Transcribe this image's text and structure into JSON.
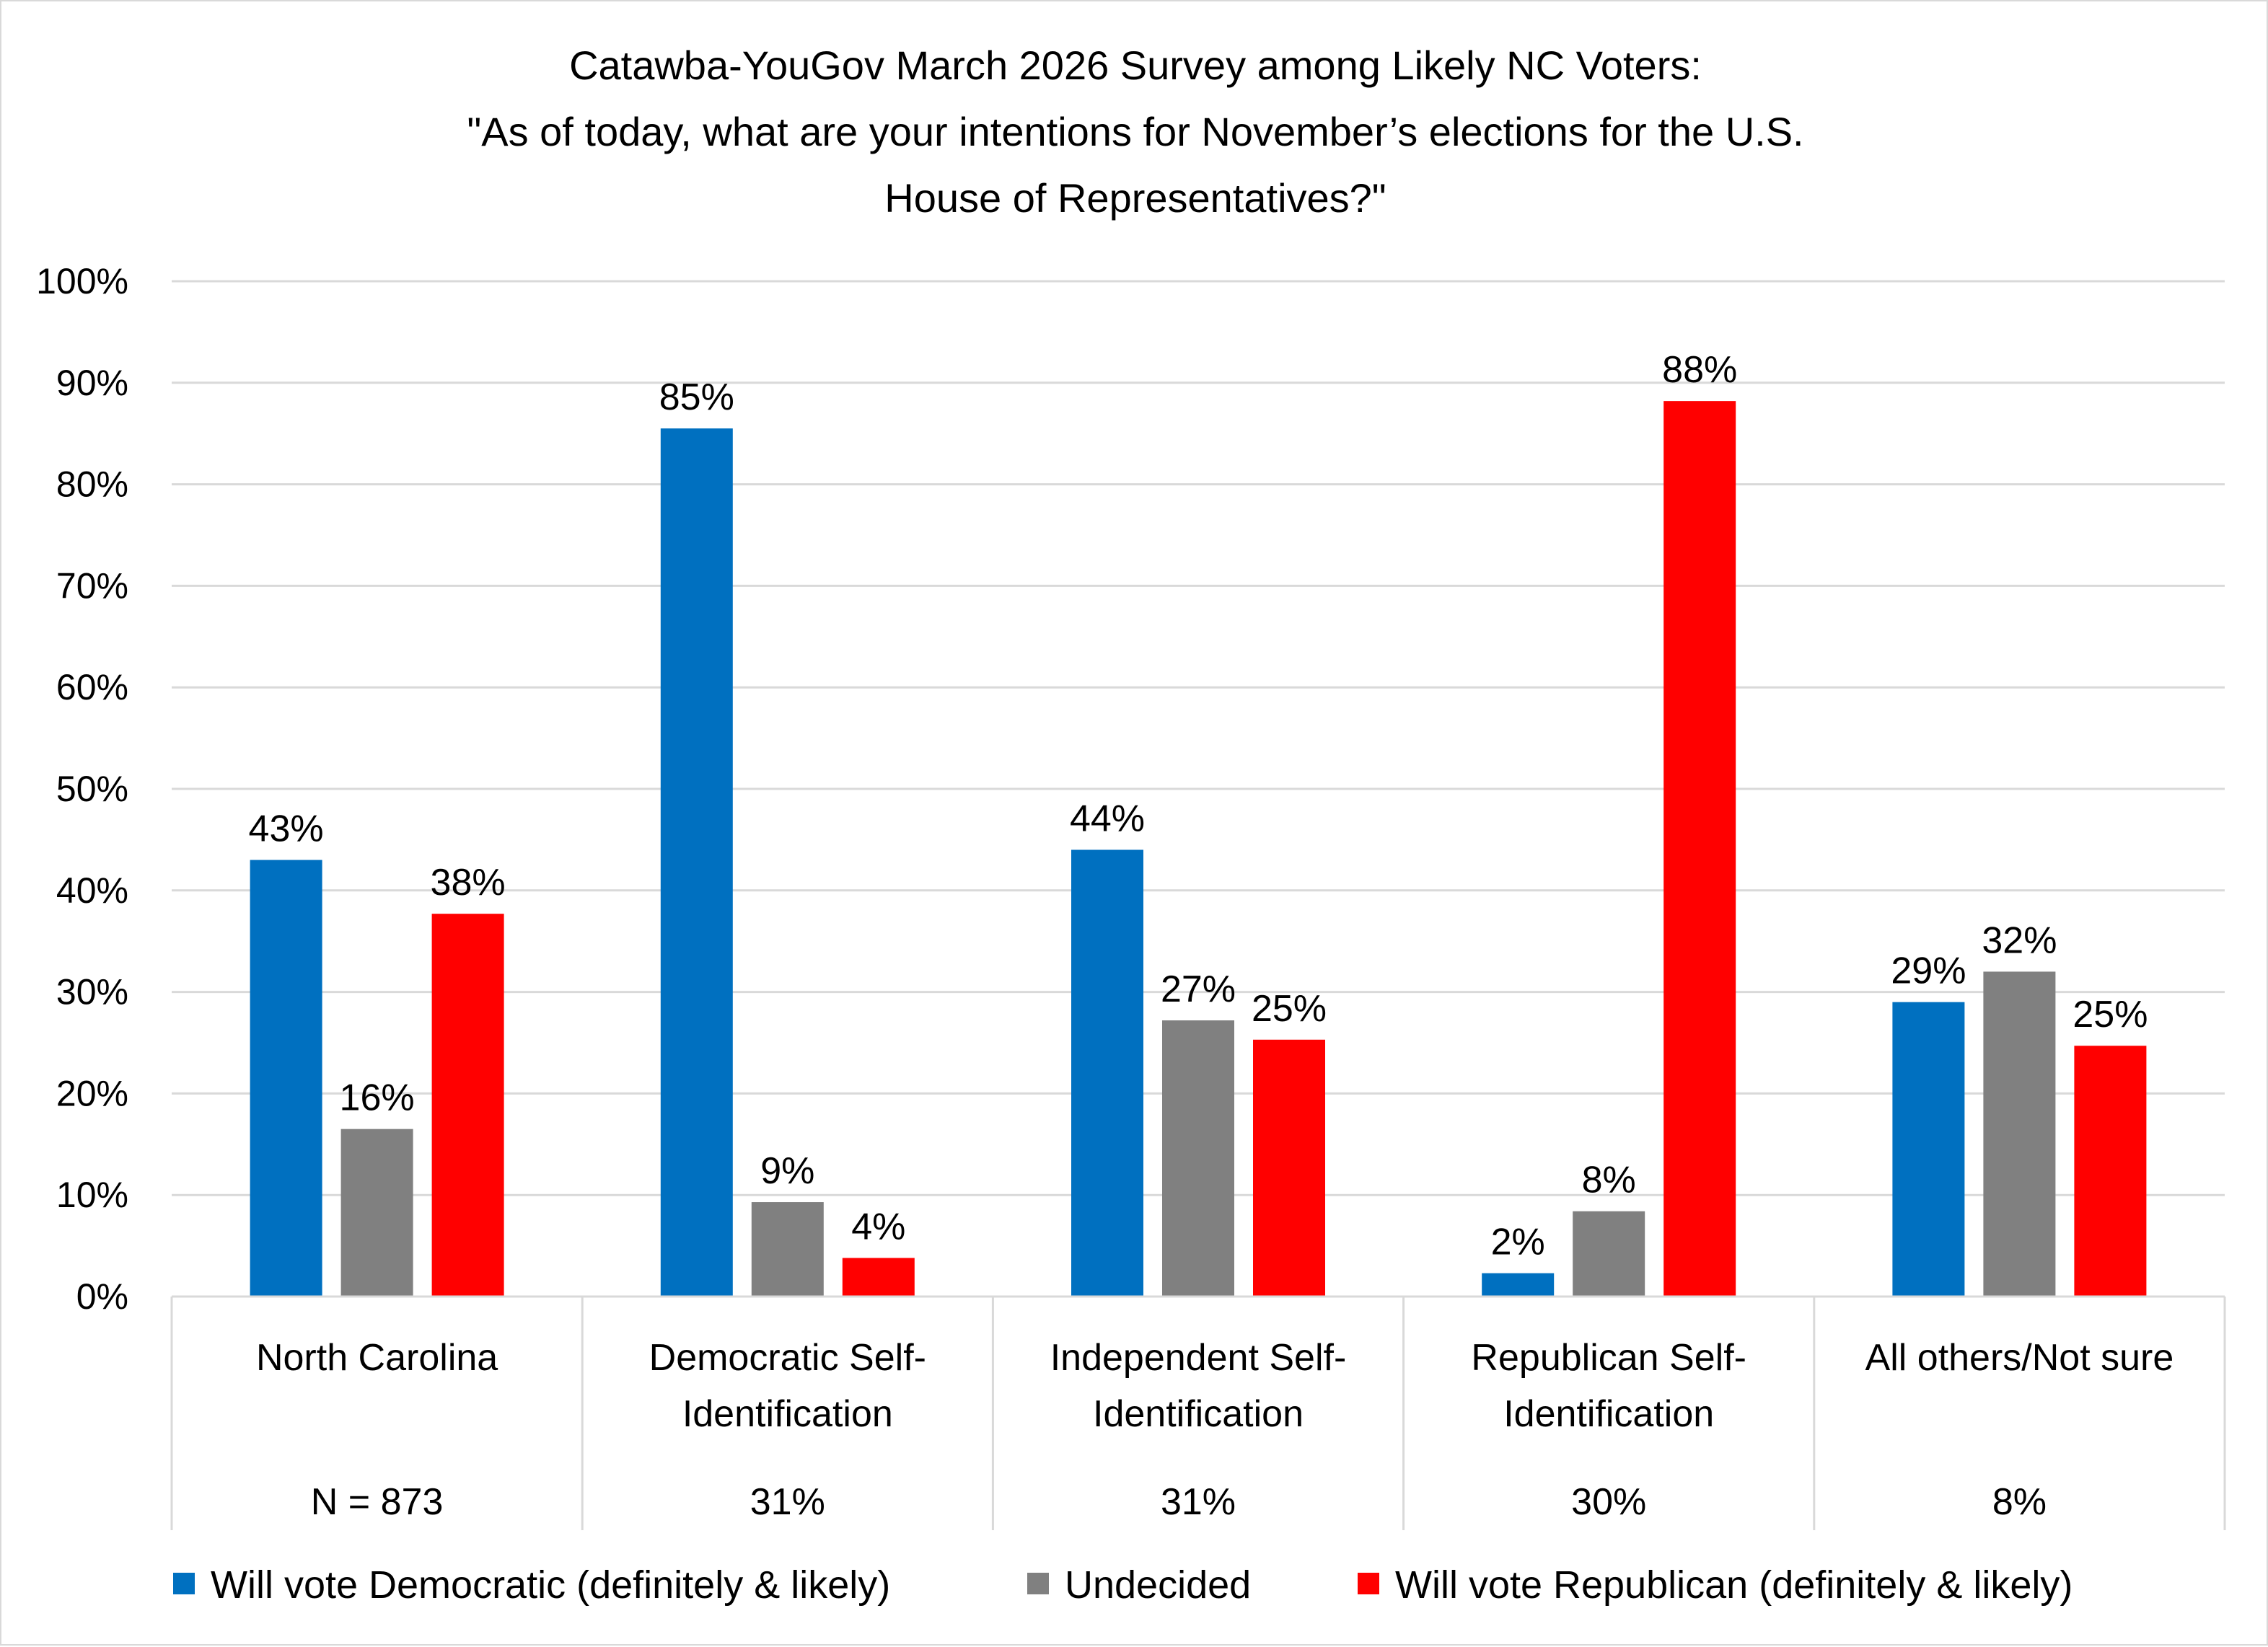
{
  "chart_data": {
    "type": "bar",
    "title": [
      "Catawba-YouGov March 2026 Survey among Likely NC Voters:",
      "\"As of today, what are your intentions for November’s elections for the U.S.",
      "House of Representatives?\""
    ],
    "categories": [
      [
        "North Carolina"
      ],
      [
        "Democratic Self-",
        "Identification"
      ],
      [
        "Independent Self-",
        "Identification"
      ],
      [
        "Republican Self-",
        "Identification"
      ],
      [
        "All others/Not sure"
      ]
    ],
    "category_sublabels": [
      "N = 873",
      "31%",
      "31%",
      "30%",
      "8%"
    ],
    "series": [
      {
        "name": "Will vote Democratic (definitely & likely)",
        "color": "#0070c0",
        "values": [
          43,
          85.5,
          44,
          2.3,
          29
        ],
        "labels": [
          "43%",
          "85%",
          "44%",
          "2%",
          "29%"
        ]
      },
      {
        "name": "Undecided",
        "color": "#808080",
        "values": [
          16.5,
          9.3,
          27.2,
          8.4,
          32
        ],
        "labels": [
          "16%",
          "9%",
          "27%",
          "8%",
          "32%"
        ]
      },
      {
        "name": "Will vote Republican (definitely & likely)",
        "color": "#ff0000",
        "values": [
          37.7,
          3.8,
          25.3,
          88.2,
          24.7
        ],
        "labels": [
          "38%",
          "4%",
          "25%",
          "88%",
          "25%"
        ]
      }
    ],
    "y_ticks": [
      "0%",
      "10%",
      "20%",
      "30%",
      "40%",
      "50%",
      "60%",
      "70%",
      "80%",
      "90%",
      "100%"
    ],
    "ylim": [
      0,
      100
    ],
    "ylabel": "",
    "xlabel": "",
    "grid": true,
    "legend_position": "bottom"
  }
}
